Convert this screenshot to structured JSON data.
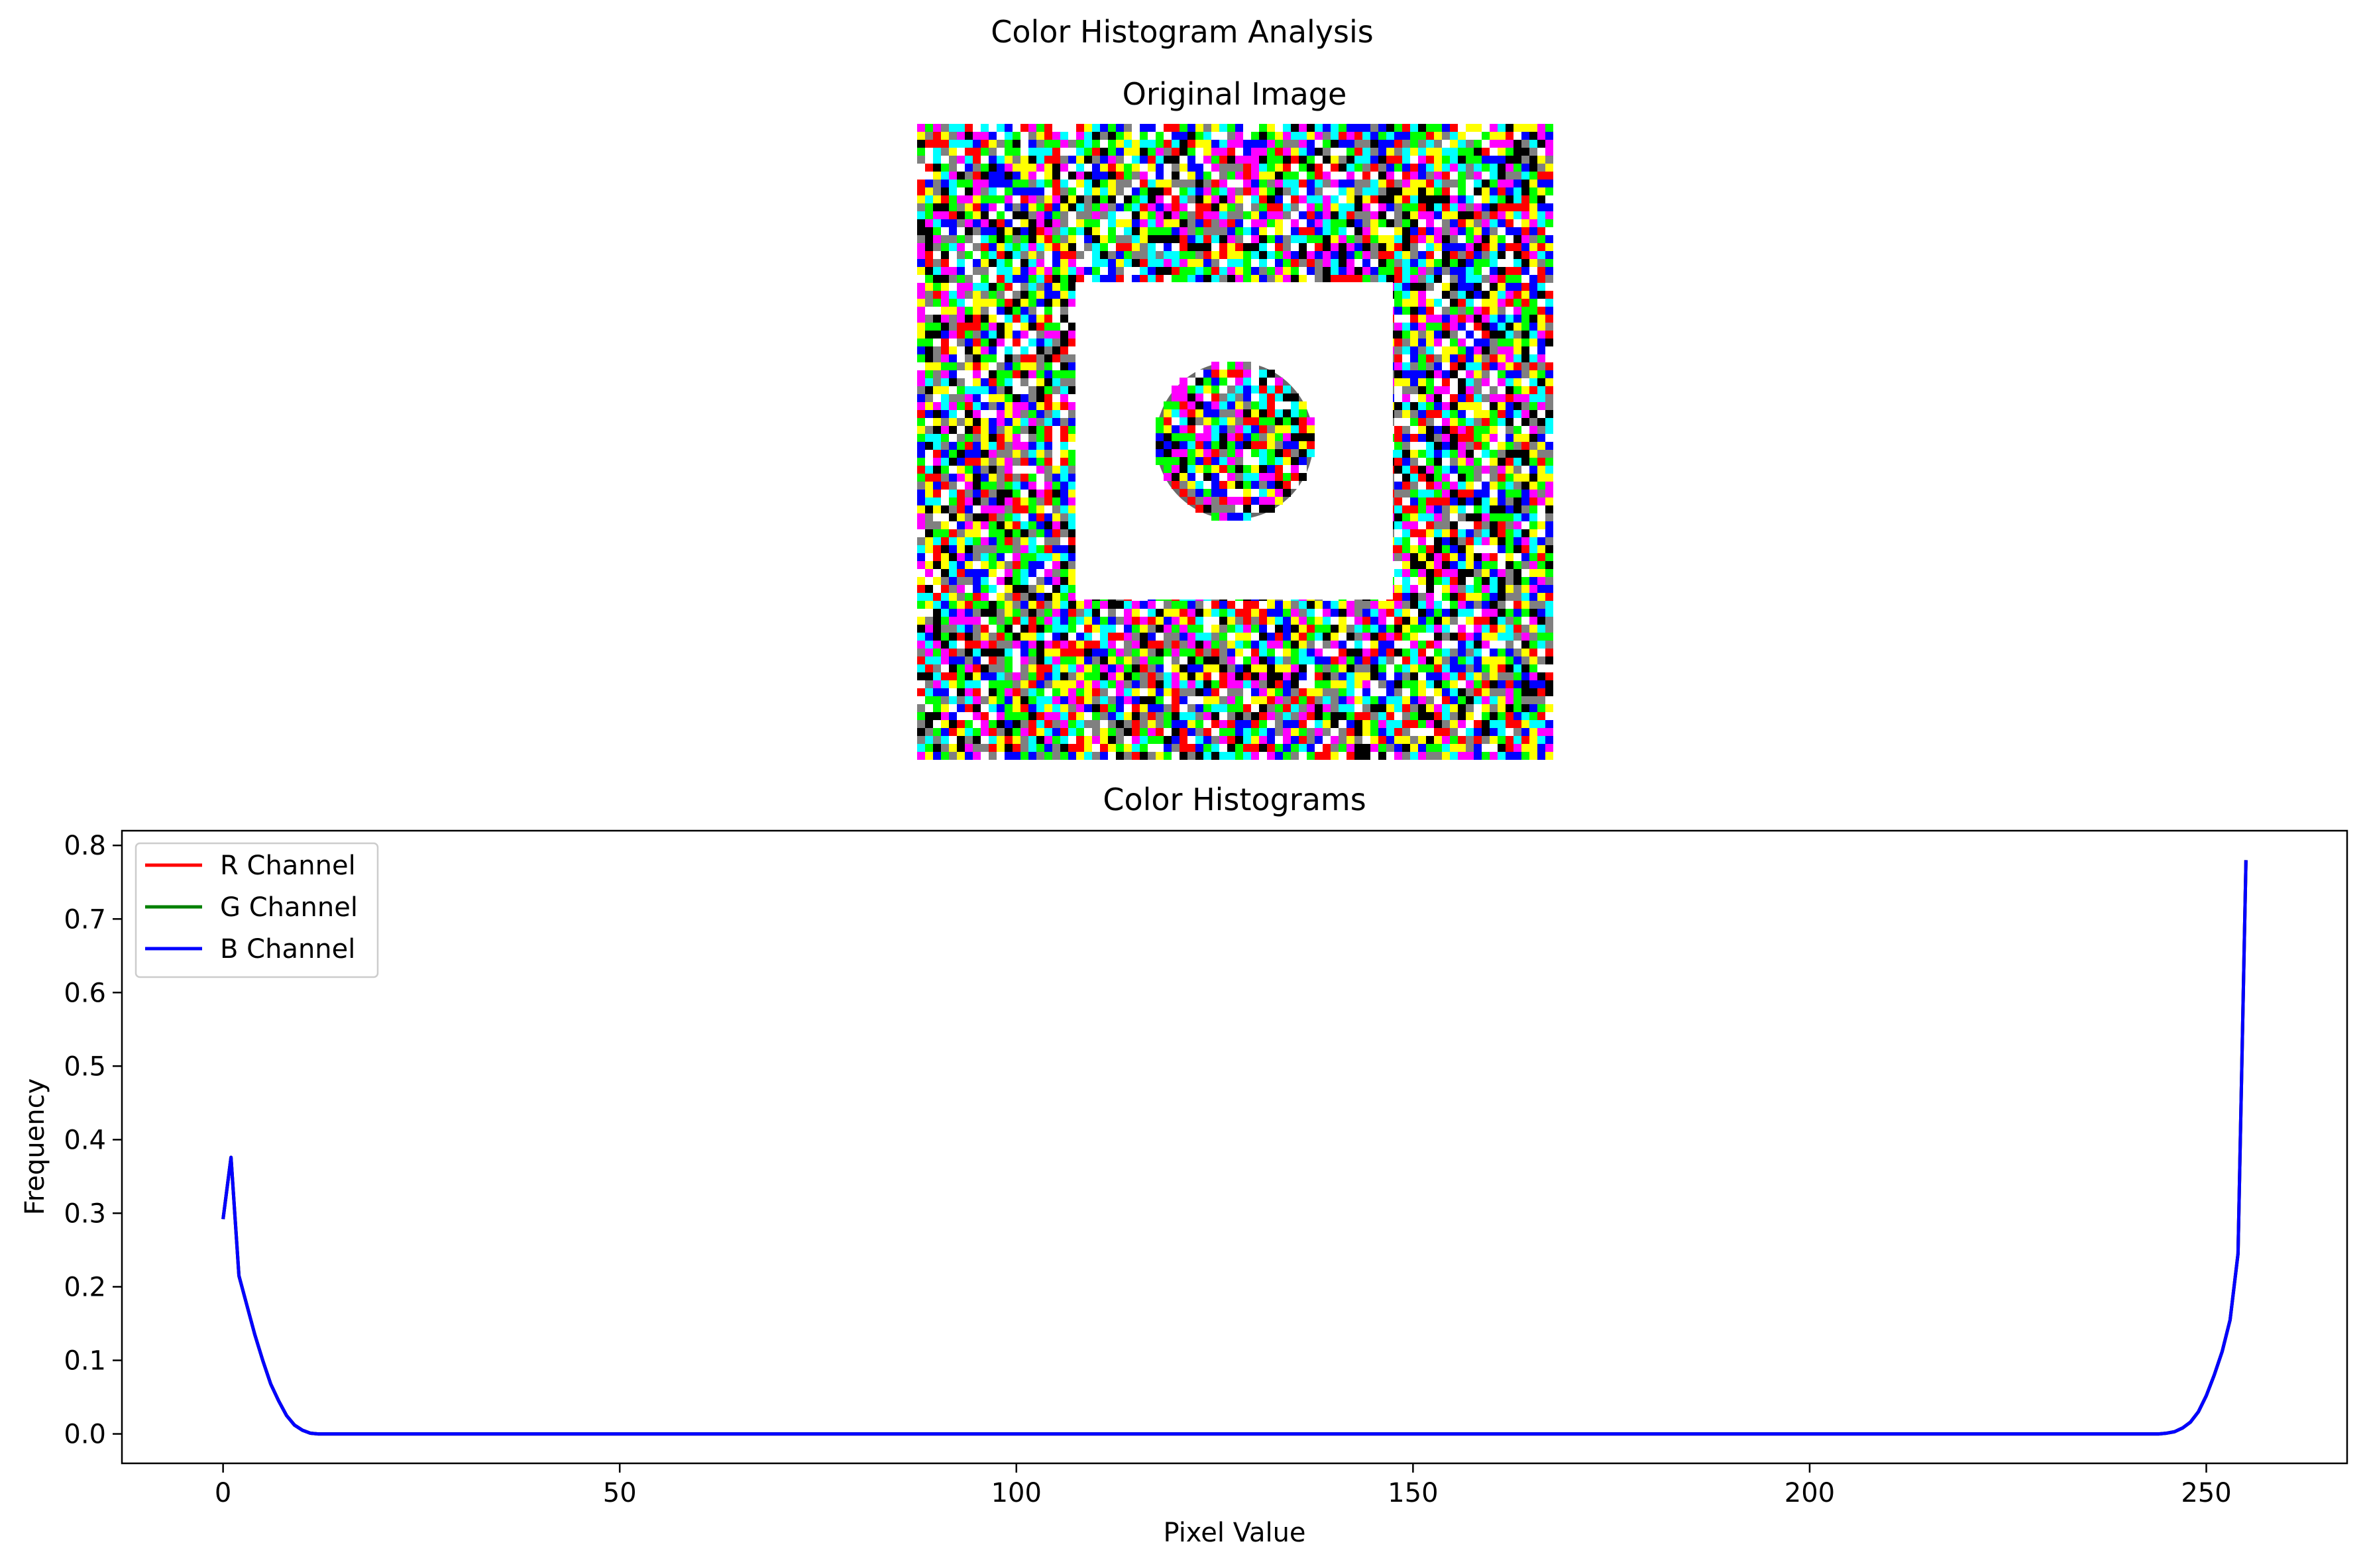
{
  "figure": {
    "suptitle": "Color Histogram Analysis"
  },
  "image_panel": {
    "title": "Original Image",
    "description_colors": {
      "background": "#ffffff",
      "noise_palette": [
        "#000000",
        "#ff0000",
        "#00ff00",
        "#0000ff",
        "#ffff00",
        "#ff00ff",
        "#00ffff",
        "#ffffff",
        "#808080"
      ]
    }
  },
  "chart_data": {
    "type": "line",
    "title": "Color Histograms",
    "xlabel": "Pixel Value",
    "ylabel": "Frequency",
    "xlim": [
      -12.75,
      267.75
    ],
    "ylim": [
      -0.04,
      0.82
    ],
    "xticks": [
      0,
      50,
      100,
      150,
      200,
      250
    ],
    "yticks": [
      0.0,
      0.1,
      0.2,
      0.3,
      0.4,
      0.5,
      0.6,
      0.7,
      0.8
    ],
    "ytick_labels": [
      "0.0",
      "0.1",
      "0.2",
      "0.3",
      "0.4",
      "0.5",
      "0.6",
      "0.7",
      "0.8"
    ],
    "grid": false,
    "legend": {
      "placement": "upper-left"
    },
    "series": [
      {
        "name": "R Channel",
        "color": "#ff0000",
        "x": [
          0,
          1,
          2,
          3,
          4,
          5,
          6,
          7,
          8,
          9,
          10,
          11,
          12,
          244,
          245,
          246,
          247,
          248,
          249,
          250,
          251,
          252,
          253,
          254,
          255
        ],
        "y": [
          0.292,
          0.376,
          0.215,
          0.175,
          0.135,
          0.1,
          0.068,
          0.045,
          0.025,
          0.012,
          0.005,
          0.001,
          0.0,
          0.0,
          0.001,
          0.003,
          0.008,
          0.016,
          0.03,
          0.052,
          0.08,
          0.112,
          0.155,
          0.245,
          0.78
        ]
      },
      {
        "name": "G Channel",
        "color": "#008000",
        "x": [
          0,
          1,
          2,
          3,
          4,
          5,
          6,
          7,
          8,
          9,
          10,
          11,
          12,
          244,
          245,
          246,
          247,
          248,
          249,
          250,
          251,
          252,
          253,
          254,
          255
        ],
        "y": [
          0.292,
          0.376,
          0.215,
          0.175,
          0.135,
          0.1,
          0.068,
          0.045,
          0.025,
          0.012,
          0.005,
          0.001,
          0.0,
          0.0,
          0.001,
          0.003,
          0.008,
          0.016,
          0.03,
          0.052,
          0.08,
          0.112,
          0.155,
          0.245,
          0.78
        ]
      },
      {
        "name": "B Channel",
        "color": "#0000ff",
        "x": [
          0,
          1,
          2,
          3,
          4,
          5,
          6,
          7,
          8,
          9,
          10,
          11,
          12,
          244,
          245,
          246,
          247,
          248,
          249,
          250,
          251,
          252,
          253,
          254,
          255
        ],
        "y": [
          0.292,
          0.376,
          0.215,
          0.175,
          0.135,
          0.1,
          0.068,
          0.045,
          0.025,
          0.012,
          0.005,
          0.001,
          0.0,
          0.0,
          0.001,
          0.003,
          0.008,
          0.016,
          0.03,
          0.052,
          0.08,
          0.112,
          0.155,
          0.245,
          0.78
        ]
      }
    ]
  }
}
